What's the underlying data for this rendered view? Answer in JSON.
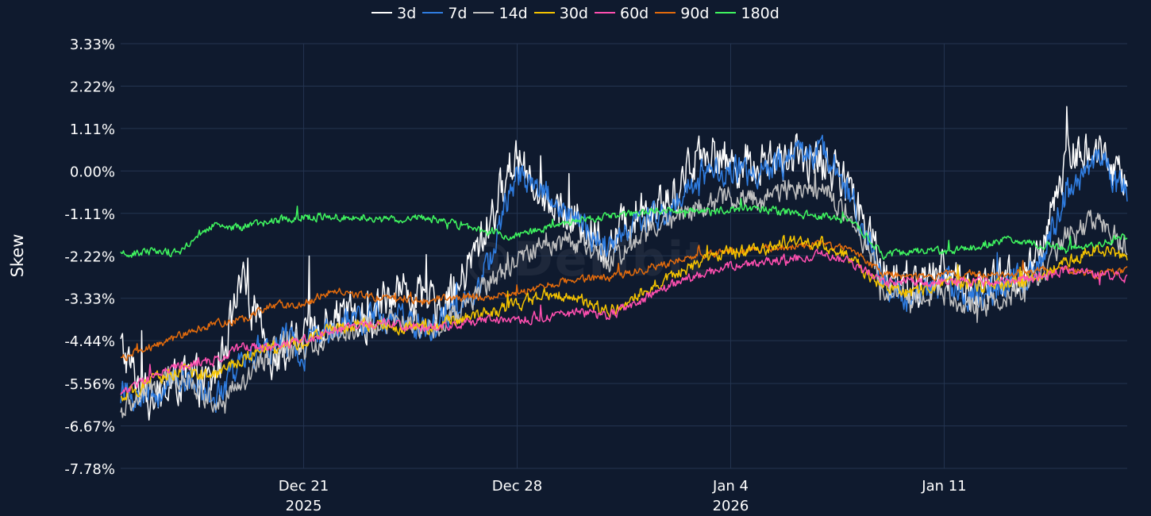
{
  "chart_data": {
    "type": "line",
    "title": "",
    "ylabel": "Skew",
    "xlabel": "",
    "ylim": [
      -7.78,
      3.33
    ],
    "yticks": [
      "3.33%",
      "2.22%",
      "1.11%",
      "0.00%",
      "-1.11%",
      "-2.22%",
      "-3.33%",
      "-4.44%",
      "-5.56%",
      "-6.67%",
      "-7.78%"
    ],
    "ytick_values": [
      3.33,
      2.22,
      1.11,
      0.0,
      -1.11,
      -2.22,
      -3.33,
      -4.44,
      -5.56,
      -6.67,
      -7.78
    ],
    "xlim": [
      "2025-12-15",
      "2026-01-17"
    ],
    "xticks": [
      {
        "date": "2025-12-21",
        "label": "Dec 21",
        "sublabel": "2025"
      },
      {
        "date": "2025-12-28",
        "label": "Dec 28",
        "sublabel": ""
      },
      {
        "date": "2026-01-04",
        "label": "Jan 4",
        "sublabel": "2026"
      },
      {
        "date": "2026-01-11",
        "label": "Jan 11",
        "sublabel": ""
      }
    ],
    "grid": true,
    "legend": "top-center",
    "watermark": "@Deribit",
    "series": [
      {
        "name": "3d",
        "color": "#ffffff",
        "volatility": 0.55,
        "points": [
          [
            "2025-12-15",
            -4.6
          ],
          [
            "2025-12-16",
            -6.2
          ],
          [
            "2025-12-17",
            -5.4
          ],
          [
            "2025-12-18",
            -5.6
          ],
          [
            "2025-12-19",
            -3.0
          ],
          [
            "2025-12-20",
            -4.9
          ],
          [
            "2025-12-21",
            -4.4
          ],
          [
            "2025-12-22",
            -3.6
          ],
          [
            "2025-12-23",
            -4.0
          ],
          [
            "2025-12-24",
            -3.0
          ],
          [
            "2025-12-25",
            -3.5
          ],
          [
            "2025-12-26",
            -3.2
          ],
          [
            "2025-12-27",
            -1.5
          ],
          [
            "2025-12-28",
            0.5
          ],
          [
            "2025-12-29",
            -0.8
          ],
          [
            "2025-12-30",
            -1.3
          ],
          [
            "2025-12-31",
            -2.0
          ],
          [
            "2026-01-01",
            -0.9
          ],
          [
            "2026-01-02",
            -0.8
          ],
          [
            "2026-01-03",
            0.6
          ],
          [
            "2026-01-04",
            0.2
          ],
          [
            "2026-01-05",
            0.2
          ],
          [
            "2026-01-06",
            0.3
          ],
          [
            "2026-01-07",
            0.3
          ],
          [
            "2026-01-08",
            -0.6
          ],
          [
            "2026-01-09",
            -2.5
          ],
          [
            "2026-01-10",
            -3.0
          ],
          [
            "2026-01-11",
            -2.6
          ],
          [
            "2026-01-12",
            -3.2
          ],
          [
            "2026-01-13",
            -2.8
          ],
          [
            "2026-01-14",
            -2.6
          ],
          [
            "2026-01-15",
            0.4
          ],
          [
            "2026-01-16",
            0.6
          ],
          [
            "2026-01-17",
            -0.4
          ]
        ]
      },
      {
        "name": "7d",
        "color": "#2f7de1",
        "volatility": 0.38,
        "points": [
          [
            "2025-12-15",
            -5.8
          ],
          [
            "2025-12-16",
            -5.9
          ],
          [
            "2025-12-17",
            -5.3
          ],
          [
            "2025-12-18",
            -6.0
          ],
          [
            "2025-12-19",
            -5.0
          ],
          [
            "2025-12-20",
            -4.5
          ],
          [
            "2025-12-21",
            -4.6
          ],
          [
            "2025-12-22",
            -4.1
          ],
          [
            "2025-12-23",
            -3.9
          ],
          [
            "2025-12-24",
            -3.8
          ],
          [
            "2025-12-25",
            -4.2
          ],
          [
            "2025-12-26",
            -3.7
          ],
          [
            "2025-12-27",
            -2.6
          ],
          [
            "2025-12-28",
            0.0
          ],
          [
            "2025-12-29",
            -0.6
          ],
          [
            "2025-12-30",
            -1.4
          ],
          [
            "2025-12-31",
            -2.1
          ],
          [
            "2026-01-01",
            -1.3
          ],
          [
            "2026-01-02",
            -1.1
          ],
          [
            "2026-01-03",
            -0.1
          ],
          [
            "2026-01-04",
            0.0
          ],
          [
            "2026-01-05",
            -0.1
          ],
          [
            "2026-01-06",
            0.3
          ],
          [
            "2026-01-07",
            0.6
          ],
          [
            "2026-01-08",
            -0.8
          ],
          [
            "2026-01-09",
            -2.8
          ],
          [
            "2026-01-10",
            -3.4
          ],
          [
            "2026-01-11",
            -2.9
          ],
          [
            "2026-01-12",
            -3.3
          ],
          [
            "2026-01-13",
            -3.0
          ],
          [
            "2026-01-14",
            -2.7
          ],
          [
            "2026-01-15",
            -0.6
          ],
          [
            "2026-01-16",
            0.4
          ],
          [
            "2026-01-17",
            -0.6
          ]
        ]
      },
      {
        "name": "14d",
        "color": "#c0c0c0",
        "volatility": 0.3,
        "points": [
          [
            "2025-12-15",
            -6.3
          ],
          [
            "2025-12-16",
            -5.7
          ],
          [
            "2025-12-17",
            -5.3
          ],
          [
            "2025-12-18",
            -6.0
          ],
          [
            "2025-12-19",
            -5.6
          ],
          [
            "2025-12-20",
            -4.7
          ],
          [
            "2025-12-21",
            -4.7
          ],
          [
            "2025-12-22",
            -4.2
          ],
          [
            "2025-12-23",
            -4.1
          ],
          [
            "2025-12-24",
            -3.9
          ],
          [
            "2025-12-25",
            -4.1
          ],
          [
            "2025-12-26",
            -3.8
          ],
          [
            "2025-12-27",
            -2.9
          ],
          [
            "2025-12-28",
            -2.4
          ],
          [
            "2025-12-29",
            -1.8
          ],
          [
            "2025-12-30",
            -1.9
          ],
          [
            "2025-12-31",
            -2.4
          ],
          [
            "2026-01-01",
            -1.7
          ],
          [
            "2026-01-02",
            -1.3
          ],
          [
            "2026-01-03",
            -0.9
          ],
          [
            "2026-01-04",
            -0.7
          ],
          [
            "2026-01-05",
            -0.8
          ],
          [
            "2026-01-06",
            -0.4
          ],
          [
            "2026-01-07",
            -0.4
          ],
          [
            "2026-01-08",
            -1.2
          ],
          [
            "2026-01-09",
            -3.0
          ],
          [
            "2026-01-10",
            -3.3
          ],
          [
            "2026-01-11",
            -3.2
          ],
          [
            "2026-01-12",
            -3.6
          ],
          [
            "2026-01-13",
            -3.3
          ],
          [
            "2026-01-14",
            -2.9
          ],
          [
            "2026-01-15",
            -1.7
          ],
          [
            "2026-01-16",
            -1.3
          ],
          [
            "2026-01-17",
            -2.0
          ]
        ]
      },
      {
        "name": "30d",
        "color": "#f5c400",
        "volatility": 0.16,
        "points": [
          [
            "2025-12-15",
            -6.0
          ],
          [
            "2025-12-16",
            -5.5
          ],
          [
            "2025-12-17",
            -5.2
          ],
          [
            "2025-12-18",
            -5.4
          ],
          [
            "2025-12-19",
            -4.9
          ],
          [
            "2025-12-20",
            -4.6
          ],
          [
            "2025-12-21",
            -4.5
          ],
          [
            "2025-12-22",
            -4.1
          ],
          [
            "2025-12-23",
            -4.0
          ],
          [
            "2025-12-24",
            -4.1
          ],
          [
            "2025-12-25",
            -4.1
          ],
          [
            "2025-12-26",
            -3.9
          ],
          [
            "2025-12-27",
            -3.7
          ],
          [
            "2025-12-28",
            -3.5
          ],
          [
            "2025-12-29",
            -3.2
          ],
          [
            "2025-12-30",
            -3.3
          ],
          [
            "2025-12-31",
            -3.7
          ],
          [
            "2026-01-01",
            -3.2
          ],
          [
            "2026-01-02",
            -2.8
          ],
          [
            "2026-01-03",
            -2.4
          ],
          [
            "2026-01-04",
            -2.1
          ],
          [
            "2026-01-05",
            -2.1
          ],
          [
            "2026-01-06",
            -1.8
          ],
          [
            "2026-01-07",
            -1.9
          ],
          [
            "2026-01-08",
            -2.3
          ],
          [
            "2026-01-09",
            -3.1
          ],
          [
            "2026-01-10",
            -3.2
          ],
          [
            "2026-01-11",
            -2.9
          ],
          [
            "2026-01-12",
            -3.0
          ],
          [
            "2026-01-13",
            -3.0
          ],
          [
            "2026-01-14",
            -2.8
          ],
          [
            "2026-01-15",
            -2.4
          ],
          [
            "2026-01-16",
            -2.0
          ],
          [
            "2026-01-17",
            -2.3
          ]
        ]
      },
      {
        "name": "60d",
        "color": "#ff4fb0",
        "volatility": 0.12,
        "points": [
          [
            "2025-12-15",
            -5.8
          ],
          [
            "2025-12-16",
            -5.4
          ],
          [
            "2025-12-17",
            -5.1
          ],
          [
            "2025-12-18",
            -5.0
          ],
          [
            "2025-12-19",
            -4.6
          ],
          [
            "2025-12-20",
            -4.6
          ],
          [
            "2025-12-21",
            -4.4
          ],
          [
            "2025-12-22",
            -4.2
          ],
          [
            "2025-12-23",
            -4.0
          ],
          [
            "2025-12-24",
            -4.0
          ],
          [
            "2025-12-25",
            -4.1
          ],
          [
            "2025-12-26",
            -4.0
          ],
          [
            "2025-12-27",
            -3.9
          ],
          [
            "2025-12-28",
            -3.9
          ],
          [
            "2025-12-29",
            -3.8
          ],
          [
            "2025-12-30",
            -3.7
          ],
          [
            "2025-12-31",
            -3.8
          ],
          [
            "2026-01-01",
            -3.4
          ],
          [
            "2026-01-02",
            -3.0
          ],
          [
            "2026-01-03",
            -2.7
          ],
          [
            "2026-01-04",
            -2.5
          ],
          [
            "2026-01-05",
            -2.4
          ],
          [
            "2026-01-06",
            -2.3
          ],
          [
            "2026-01-07",
            -2.2
          ],
          [
            "2026-01-08",
            -2.4
          ],
          [
            "2026-01-09",
            -2.9
          ],
          [
            "2026-01-10",
            -2.9
          ],
          [
            "2026-01-11",
            -2.9
          ],
          [
            "2026-01-12",
            -2.9
          ],
          [
            "2026-01-13",
            -2.9
          ],
          [
            "2026-01-14",
            -2.8
          ],
          [
            "2026-01-15",
            -2.6
          ],
          [
            "2026-01-16",
            -2.7
          ],
          [
            "2026-01-17",
            -2.8
          ]
        ]
      },
      {
        "name": "90d",
        "color": "#e36b0c",
        "volatility": 0.1,
        "points": [
          [
            "2025-12-15",
            -4.9
          ],
          [
            "2025-12-16",
            -4.6
          ],
          [
            "2025-12-17",
            -4.3
          ],
          [
            "2025-12-18",
            -4.0
          ],
          [
            "2025-12-19",
            -3.9
          ],
          [
            "2025-12-20",
            -3.5
          ],
          [
            "2025-12-21",
            -3.5
          ],
          [
            "2025-12-22",
            -3.1
          ],
          [
            "2025-12-23",
            -3.3
          ],
          [
            "2025-12-24",
            -3.3
          ],
          [
            "2025-12-25",
            -3.4
          ],
          [
            "2025-12-26",
            -3.3
          ],
          [
            "2025-12-27",
            -3.3
          ],
          [
            "2025-12-28",
            -3.2
          ],
          [
            "2025-12-29",
            -3.0
          ],
          [
            "2025-12-30",
            -2.8
          ],
          [
            "2025-12-31",
            -2.8
          ],
          [
            "2026-01-01",
            -2.6
          ],
          [
            "2026-01-02",
            -2.4
          ],
          [
            "2026-01-03",
            -2.2
          ],
          [
            "2026-01-04",
            -2.1
          ],
          [
            "2026-01-05",
            -2.0
          ],
          [
            "2026-01-06",
            -2.0
          ],
          [
            "2026-01-07",
            -1.9
          ],
          [
            "2026-01-08",
            -2.1
          ],
          [
            "2026-01-09",
            -2.7
          ],
          [
            "2026-01-10",
            -2.8
          ],
          [
            "2026-01-11",
            -2.7
          ],
          [
            "2026-01-12",
            -2.7
          ],
          [
            "2026-01-13",
            -2.7
          ],
          [
            "2026-01-14",
            -2.6
          ],
          [
            "2026-01-15",
            -2.6
          ],
          [
            "2026-01-16",
            -2.7
          ],
          [
            "2026-01-17",
            -2.6
          ]
        ]
      },
      {
        "name": "180d",
        "color": "#3ff55f",
        "volatility": 0.1,
        "points": [
          [
            "2025-12-15",
            -2.2
          ],
          [
            "2025-12-16",
            -2.1
          ],
          [
            "2025-12-17",
            -2.1
          ],
          [
            "2025-12-18",
            -1.4
          ],
          [
            "2025-12-19",
            -1.5
          ],
          [
            "2025-12-20",
            -1.3
          ],
          [
            "2025-12-21",
            -1.2
          ],
          [
            "2025-12-22",
            -1.2
          ],
          [
            "2025-12-23",
            -1.2
          ],
          [
            "2025-12-24",
            -1.3
          ],
          [
            "2025-12-25",
            -1.2
          ],
          [
            "2025-12-26",
            -1.4
          ],
          [
            "2025-12-27",
            -1.6
          ],
          [
            "2025-12-28",
            -1.7
          ],
          [
            "2025-12-29",
            -1.5
          ],
          [
            "2025-12-30",
            -1.3
          ],
          [
            "2025-12-31",
            -1.2
          ],
          [
            "2026-01-01",
            -1.1
          ],
          [
            "2026-01-02",
            -1.0
          ],
          [
            "2026-01-03",
            -1.1
          ],
          [
            "2026-01-04",
            -1.0
          ],
          [
            "2026-01-05",
            -1.0
          ],
          [
            "2026-01-06",
            -1.1
          ],
          [
            "2026-01-07",
            -1.2
          ],
          [
            "2026-01-08",
            -1.3
          ],
          [
            "2026-01-09",
            -2.2
          ],
          [
            "2026-01-10",
            -2.1
          ],
          [
            "2026-01-11",
            -2.1
          ],
          [
            "2026-01-12",
            -2.0
          ],
          [
            "2026-01-13",
            -1.8
          ],
          [
            "2026-01-14",
            -1.9
          ],
          [
            "2026-01-15",
            -2.0
          ],
          [
            "2026-01-16",
            -1.9
          ],
          [
            "2026-01-17",
            -1.7
          ]
        ]
      }
    ]
  }
}
